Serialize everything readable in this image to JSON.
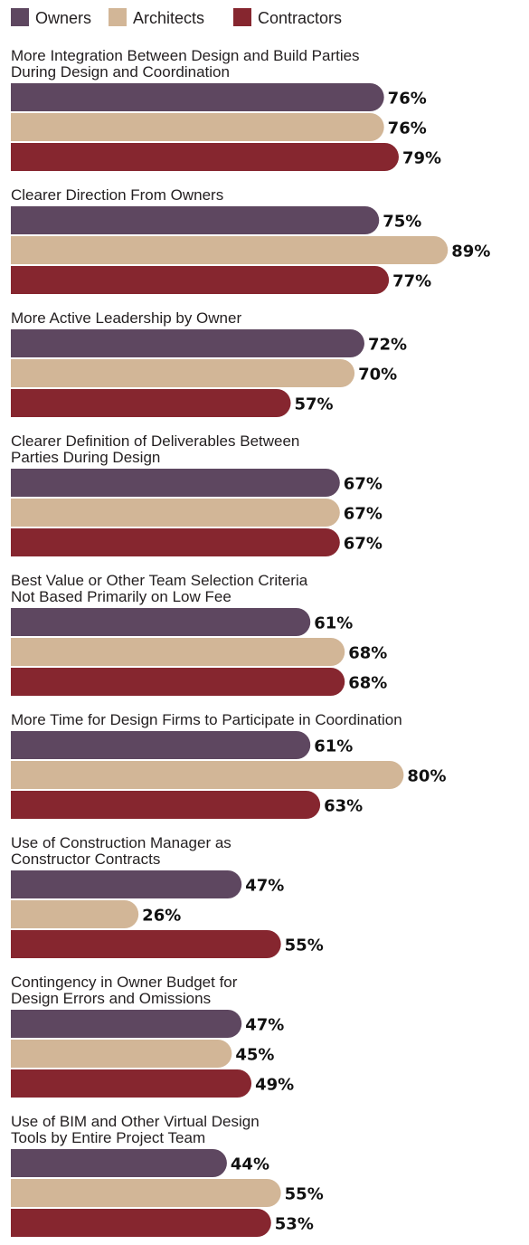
{
  "chart_data": {
    "type": "bar",
    "orientation": "horizontal",
    "value_suffix": "%",
    "xlim": [
      0,
      100
    ],
    "grid": false,
    "legend_position": "top-left",
    "series": [
      {
        "name": "Owners",
        "color": "#5e4760"
      },
      {
        "name": "Architects",
        "color": "#d2b697"
      },
      {
        "name": "Contractors",
        "color": "#86262f"
      }
    ],
    "categories": [
      {
        "label_lines": [
          "More Integration Between Design and Build Parties",
          "During Design and Coordination"
        ],
        "values": [
          76,
          76,
          79
        ]
      },
      {
        "label_lines": [
          "Clearer Direction From Owners"
        ],
        "values": [
          75,
          89,
          77
        ]
      },
      {
        "label_lines": [
          "More Active Leadership by Owner"
        ],
        "values": [
          72,
          70,
          57
        ]
      },
      {
        "label_lines": [
          "Clearer Definition of Deliverables Between",
          "Parties During Design"
        ],
        "values": [
          67,
          67,
          67
        ]
      },
      {
        "label_lines": [
          "Best Value or Other Team Selection Criteria",
          "Not Based Primarily on Low Fee"
        ],
        "values": [
          61,
          68,
          68
        ]
      },
      {
        "label_lines": [
          "More Time for Design Firms to Participate in Coordination"
        ],
        "values": [
          61,
          80,
          63
        ]
      },
      {
        "label_lines": [
          "Use of Construction Manager as",
          "Constructor Contracts"
        ],
        "values": [
          47,
          26,
          55
        ]
      },
      {
        "label_lines": [
          "Contingency in Owner Budget for",
          "Design Errors and Omissions"
        ],
        "values": [
          47,
          45,
          49
        ]
      },
      {
        "label_lines": [
          "Use of BIM and Other Virtual Design",
          "Tools by Entire Project Team"
        ],
        "values": [
          44,
          55,
          53
        ]
      }
    ]
  }
}
